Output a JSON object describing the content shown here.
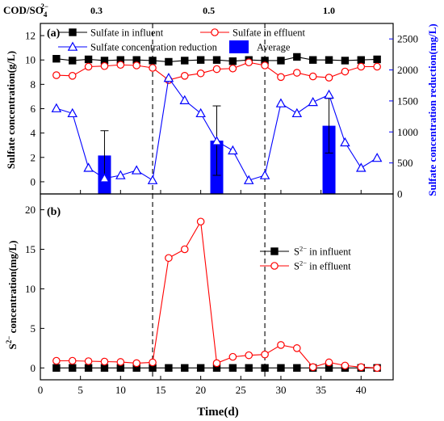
{
  "chart_data": [
    {
      "type": "line",
      "panel_label": "(a)",
      "ratio_header": {
        "label_parts": [
          "COD/SO",
          "4",
          "2−"
        ],
        "values": [
          "0.3",
          "0.5",
          "1.0"
        ]
      },
      "xlim": [
        0,
        44
      ],
      "ylim": [
        -1,
        13
      ],
      "y2lim": [
        0,
        2750
      ],
      "ylabel": "Sulfate concentration(g/L)",
      "y2label": "Sulfate concentration reduction(mg/L)",
      "x_ticks": [
        0,
        5,
        10,
        15,
        20,
        25,
        30,
        35,
        40
      ],
      "y_ticks": [
        0,
        2,
        4,
        6,
        8,
        10,
        12
      ],
      "y2_ticks": [
        0,
        500,
        1000,
        1500,
        2000,
        2500
      ],
      "phase_boundaries": [
        14,
        28
      ],
      "series": [
        {
          "name": "Sulfate in influent",
          "axis": "left",
          "marker": "square-filled",
          "color": "#000000",
          "x": [
            2,
            4,
            6,
            8,
            10,
            12,
            14,
            16,
            18,
            20,
            22,
            24,
            26,
            28,
            30,
            32,
            34,
            36,
            38,
            40,
            42
          ],
          "values": [
            10.1,
            9.95,
            10.05,
            9.95,
            10.0,
            10.0,
            9.95,
            9.85,
            9.95,
            10.0,
            10.0,
            9.9,
            10.0,
            9.95,
            9.95,
            10.25,
            10.0,
            10.0,
            9.95,
            10.0,
            10.05
          ]
        },
        {
          "name": "Sulfate in effluent",
          "axis": "left",
          "marker": "circle-open",
          "color": "#ff0000",
          "x": [
            2,
            4,
            6,
            8,
            10,
            12,
            14,
            16,
            18,
            20,
            22,
            24,
            26,
            28,
            30,
            32,
            34,
            36,
            38,
            40,
            42
          ],
          "values": [
            8.75,
            8.7,
            9.45,
            9.5,
            9.6,
            9.55,
            9.35,
            8.35,
            8.7,
            8.9,
            9.25,
            9.3,
            9.8,
            9.55,
            8.6,
            8.95,
            8.65,
            8.55,
            9.05,
            9.45,
            9.45
          ]
        },
        {
          "name": "Sulfate concentration reduction",
          "axis": "right",
          "marker": "triangle-open",
          "color": "#0000ff",
          "x": [
            2,
            4,
            6,
            8,
            10,
            12,
            14,
            16,
            18,
            20,
            22,
            24,
            26,
            28,
            30,
            32,
            34,
            36,
            38,
            40,
            42
          ],
          "values": [
            1380,
            1300,
            420,
            250,
            300,
            380,
            220,
            1870,
            1510,
            1300,
            850,
            700,
            220,
            300,
            1460,
            1300,
            1480,
            1600,
            830,
            420,
            580
          ]
        }
      ],
      "bars": {
        "name": "Average",
        "axis": "right",
        "color": "#0000ff",
        "x": [
          8,
          22,
          36
        ],
        "values": [
          620,
          860,
          1100
        ],
        "error_plus": [
          400,
          560,
          440
        ],
        "error_minus": [
          400,
          560,
          440
        ]
      },
      "legend": [
        {
          "label": "Sulfate in influent",
          "marker": "square-filled",
          "color": "#000000"
        },
        {
          "label": "Sulfate in effluent",
          "marker": "circle-open",
          "color": "#ff0000"
        },
        {
          "label": "Sulfate concentration reduction",
          "marker": "triangle-open",
          "color": "#0000ff"
        },
        {
          "label": "Average",
          "marker": "bar",
          "color": "#0000ff"
        }
      ]
    },
    {
      "type": "line",
      "panel_label": "(b)",
      "xlim": [
        0,
        44
      ],
      "ylim": [
        -1.5,
        22
      ],
      "xlabel": "Time(d)",
      "ylabel_parts": [
        "S",
        "2−",
        " concentration(mg/L)"
      ],
      "x_ticks": [
        0,
        5,
        10,
        15,
        20,
        25,
        30,
        35,
        40
      ],
      "y_ticks": [
        0,
        5,
        10,
        15,
        20
      ],
      "phase_boundaries": [
        14,
        28
      ],
      "series": [
        {
          "name_parts": [
            "S",
            "2−",
            " in influent"
          ],
          "marker": "square-filled",
          "color": "#000000",
          "x": [
            2,
            4,
            6,
            8,
            10,
            12,
            14,
            16,
            18,
            20,
            22,
            24,
            26,
            28,
            30,
            32,
            34,
            36,
            38,
            40,
            42
          ],
          "values": [
            0,
            0,
            0,
            0,
            0,
            0,
            0,
            0,
            0,
            0,
            0,
            0,
            0,
            0,
            0,
            0,
            0,
            0,
            0,
            0,
            0
          ]
        },
        {
          "name_parts": [
            "S",
            "2−",
            " in effluent"
          ],
          "marker": "circle-open",
          "color": "#ff0000",
          "x": [
            2,
            4,
            6,
            8,
            10,
            12,
            14,
            16,
            18,
            20,
            22,
            24,
            26,
            28,
            30,
            32,
            34,
            36,
            38,
            40,
            42
          ],
          "values": [
            0.9,
            0.9,
            0.85,
            0.8,
            0.75,
            0.6,
            0.7,
            13.9,
            15.0,
            18.5,
            0.6,
            1.4,
            1.6,
            1.7,
            2.9,
            2.5,
            0.1,
            0.7,
            0.3,
            0.1,
            0.0
          ]
        }
      ]
    }
  ]
}
